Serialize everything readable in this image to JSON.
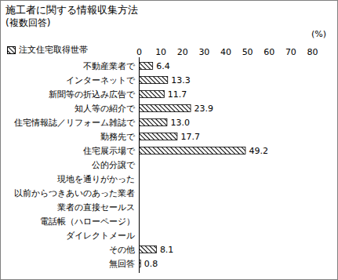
{
  "chart_data": {
    "type": "bar",
    "orientation": "horizontal",
    "title": "施工者に関する情報収集方法",
    "subtitle": "(複数回答)",
    "xlabel": "(%)",
    "categories": [
      "不動産業者で",
      "インターネットで",
      "新聞等の折込み広告で",
      "知人等の紹介で",
      "住宅情報誌／リフォーム雑誌で",
      "勤務先で",
      "住宅展示場で",
      "公的分譲で",
      "現地を通りがかった",
      "以前からつきあいのあった業者",
      "業者の直接セールス",
      "電話帳（ハローページ）",
      "ダイレクトメール",
      "その他",
      "無回答"
    ],
    "series": [
      {
        "name": "注文住宅取得世帯",
        "color": "#000000",
        "values": [
          6.4,
          13.3,
          11.7,
          23.9,
          13.0,
          17.7,
          49.2,
          null,
          null,
          null,
          null,
          null,
          null,
          8.1,
          0.8
        ],
        "value_labels": [
          "6.4",
          "13.3",
          "11.7",
          "23.9",
          "13.0",
          "17.7",
          "49.2",
          null,
          null,
          null,
          null,
          null,
          null,
          "8.1",
          "0.8"
        ]
      }
    ],
    "xlim": [
      0,
      80
    ],
    "xticks": [
      0,
      10,
      20,
      30,
      40,
      50,
      60,
      70,
      80
    ],
    "data_labels": true,
    "legend": "top-left"
  }
}
